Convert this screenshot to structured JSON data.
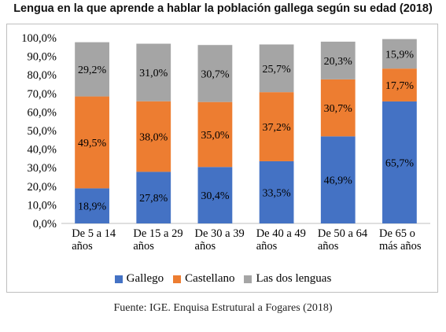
{
  "title": "Lengua en la que aprende a hablar la población gallega según su edad (2018)",
  "source": "Fuente: IGE. Enquisa Estrutural a Fogares (2018)",
  "colors": {
    "Gallego": "#4472c4",
    "Castellano": "#ed7d31",
    "Las dos lenguas": "#a5a5a5"
  },
  "chart_data": {
    "type": "bar",
    "stacked": true,
    "title": "Lengua en la que aprende a hablar la población gallega según su edad (2018)",
    "categories": [
      [
        "De 5 a 14",
        "años"
      ],
      [
        "De 15 a 29",
        "años"
      ],
      [
        "De 30 a 39",
        "años"
      ],
      [
        "De 40 a 49",
        "años"
      ],
      [
        "De 50 a 64",
        "años"
      ],
      [
        "De 65 o",
        "más años"
      ]
    ],
    "series": [
      {
        "name": "Gallego",
        "values": [
          18.9,
          27.8,
          30.4,
          33.5,
          46.9,
          65.7
        ],
        "labels": [
          "18,9%",
          "27,8%",
          "30,4%",
          "33,5%",
          "46,9%",
          "65,7%"
        ]
      },
      {
        "name": "Castellano",
        "values": [
          49.5,
          38.0,
          35.0,
          37.2,
          30.7,
          17.7
        ],
        "labels": [
          "49,5%",
          "38,0%",
          "35,0%",
          "37,2%",
          "30,7%",
          "17,7%"
        ]
      },
      {
        "name": "Las dos lenguas",
        "values": [
          29.2,
          31.0,
          30.7,
          25.7,
          20.3,
          15.9
        ],
        "labels": [
          "29,2%",
          "31,0%",
          "30,7%",
          "25,7%",
          "20,3%",
          "15,9%"
        ]
      }
    ],
    "ylim": [
      0,
      100
    ],
    "yticks": [
      "0,0%",
      "10,0%",
      "20,0%",
      "30,0%",
      "40,0%",
      "50,0%",
      "60,0%",
      "70,0%",
      "80,0%",
      "90,0%",
      "100,0%"
    ],
    "grid": false,
    "legend": "bottom"
  }
}
